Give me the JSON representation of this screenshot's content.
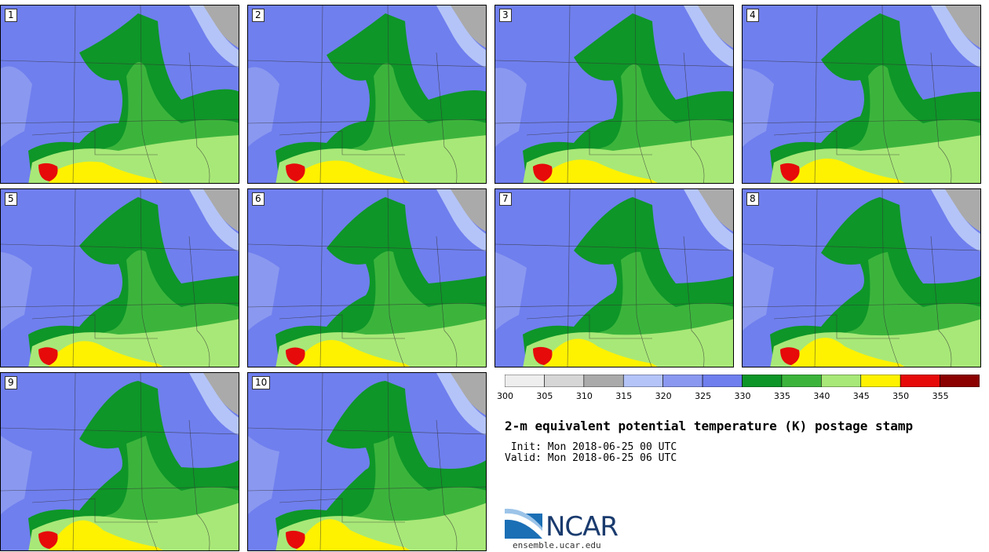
{
  "panels": [
    {
      "label": "1"
    },
    {
      "label": "2"
    },
    {
      "label": "3"
    },
    {
      "label": "4"
    },
    {
      "label": "5"
    },
    {
      "label": "6"
    },
    {
      "label": "7"
    },
    {
      "label": "8"
    },
    {
      "label": "9"
    },
    {
      "label": "10"
    }
  ],
  "legend": {
    "colors": [
      "#eeeeee",
      "#d6d6d6",
      "#aaaaaa",
      "#b4c4f8",
      "#8a98f0",
      "#6f7fee",
      "#0e9628",
      "#3cb43c",
      "#a8e878",
      "#fff200",
      "#e60a0a",
      "#8b0000"
    ],
    "labels": [
      "300",
      "305",
      "310",
      "315",
      "320",
      "325",
      "330",
      "335",
      "340",
      "345",
      "350",
      "355"
    ]
  },
  "title": "2-m equivalent potential temperature (K) postage stamp",
  "init": " Init: Mon 2018-06-25 00 UTC",
  "valid": "Valid: Mon 2018-06-25 06 UTC",
  "logo": {
    "text": "NCAR",
    "url": "ensemble.ucar.edu"
  }
}
